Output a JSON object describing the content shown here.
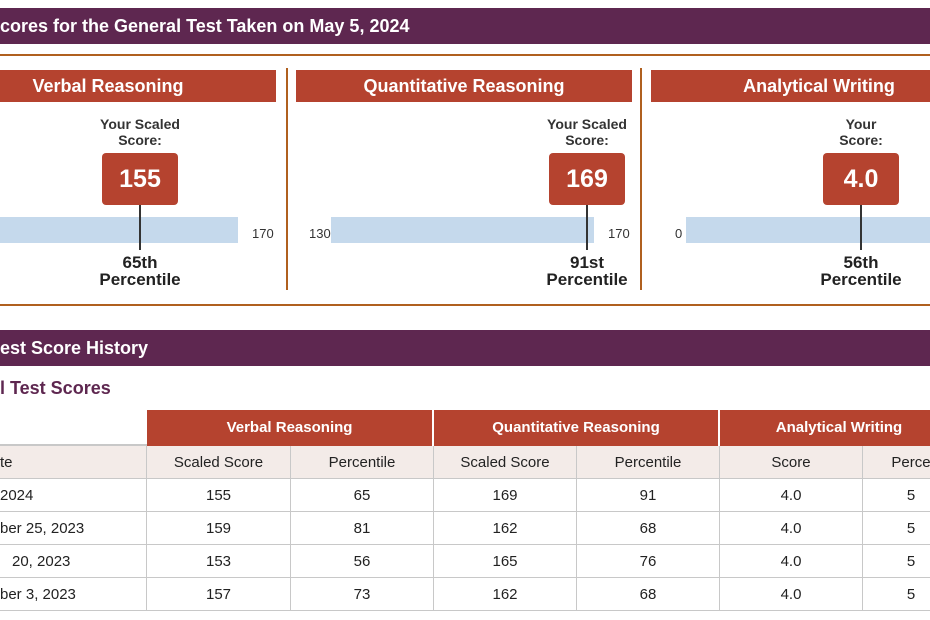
{
  "banner": {
    "title": "cores for the General Test Taken on May 5, 2024"
  },
  "panels": [
    {
      "title": "Verbal Reasoning",
      "label_lines": [
        "Your Scaled",
        "Score:"
      ],
      "score": "155",
      "scale_right": "170",
      "percentile_lines": [
        "65th",
        "Percentile"
      ]
    },
    {
      "title": "Quantitative Reasoning",
      "label_lines": [
        "Your Scaled",
        "Score:"
      ],
      "score": "169",
      "scale_left": "130",
      "scale_right": "170",
      "percentile_lines": [
        "91st",
        "Percentile"
      ]
    },
    {
      "title": "Analytical Writing",
      "label_lines": [
        "Your",
        "Score:"
      ],
      "score": "4.0",
      "scale_left": "0",
      "percentile_lines": [
        "56th",
        "Percentile"
      ]
    }
  ],
  "history": {
    "title": "est Score History",
    "subtitle": "l Test Scores",
    "group_headers": [
      "Verbal Reasoning",
      "Quantitative Reasoning",
      "Analytical Writing"
    ],
    "column_headers": [
      "te",
      "Scaled Score",
      "Percentile",
      "Scaled Score",
      "Percentile",
      "Score",
      "Perce"
    ],
    "rows": [
      [
        "2024",
        "155",
        "65",
        "169",
        "91",
        "4.0",
        "5"
      ],
      [
        "ber 25, 2023",
        "159",
        "81",
        "162",
        "68",
        "4.0",
        "5"
      ],
      [
        "20, 2023",
        "153",
        "56",
        "165",
        "76",
        "4.0",
        "5"
      ],
      [
        "ber 3, 2023",
        "157",
        "73",
        "162",
        "68",
        "4.0",
        "5"
      ]
    ]
  }
}
